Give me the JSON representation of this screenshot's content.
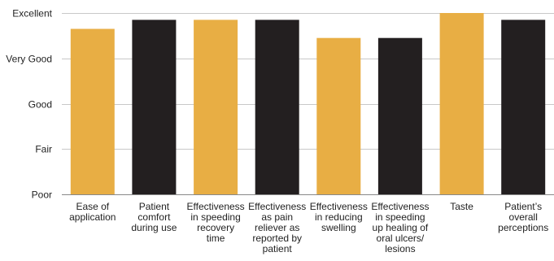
{
  "chart_data": {
    "type": "bar",
    "title": "",
    "xlabel": "",
    "ylabel": "",
    "y_scale_labels": [
      "Poor",
      "Fair",
      "Good",
      "Very Good",
      "Excellent"
    ],
    "ylim": [
      1,
      5
    ],
    "grid": true,
    "categories": [
      [
        "Ease of",
        "application"
      ],
      [
        "Patient",
        "comfort",
        "during use"
      ],
      [
        "Effectiveness",
        "in speeding",
        "recovery",
        "time"
      ],
      [
        "Effectiveness",
        "as pain",
        "reliever as",
        "reported by",
        "patient"
      ],
      [
        "Effectiveness",
        "in reducing",
        "swelling"
      ],
      [
        "Effectiveness",
        "in speeding",
        "up healing of",
        "oral ulcers/",
        "lesions"
      ],
      [
        "Taste"
      ],
      [
        "Patient’s",
        "overall",
        "perceptions"
      ]
    ],
    "values": [
      4.65,
      4.85,
      4.85,
      4.85,
      4.45,
      4.45,
      5.0,
      4.85
    ],
    "bar_colors": [
      "#E8AE44",
      "#231F20",
      "#E8AE44",
      "#231F20",
      "#E8AE44",
      "#231F20",
      "#E8AE44",
      "#231F20"
    ]
  }
}
